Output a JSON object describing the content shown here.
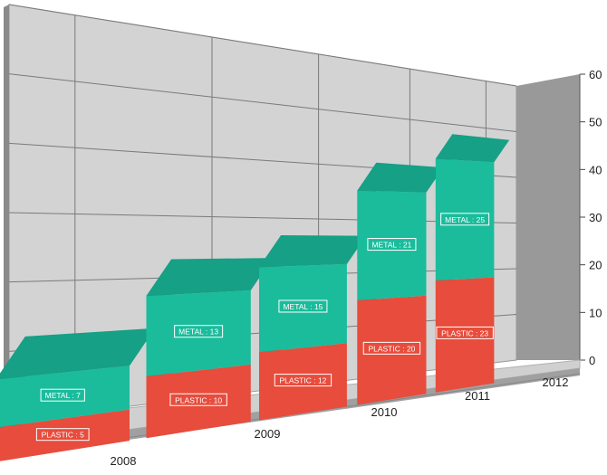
{
  "chart_data": {
    "type": "bar",
    "stacked": true,
    "three_d": true,
    "categories": [
      "2008",
      "2009",
      "2010",
      "2011",
      "2012"
    ],
    "series": [
      {
        "name": "PLASTIC",
        "values": [
          5,
          10,
          12,
          20,
          23
        ],
        "color": "#e74c3c",
        "side_color": "#a93226",
        "top_color": "#c0392b"
      },
      {
        "name": "METAL",
        "values": [
          7,
          13,
          15,
          21,
          25
        ],
        "color": "#1abc9c",
        "side_color": "#138a72",
        "top_color": "#16a085"
      }
    ],
    "ylim": [
      0,
      60
    ],
    "yticks": [
      0,
      10,
      20,
      30,
      40,
      50,
      60
    ],
    "grid": true,
    "wall_color": "#d3d3d3",
    "side_wall_color": "#999999"
  }
}
